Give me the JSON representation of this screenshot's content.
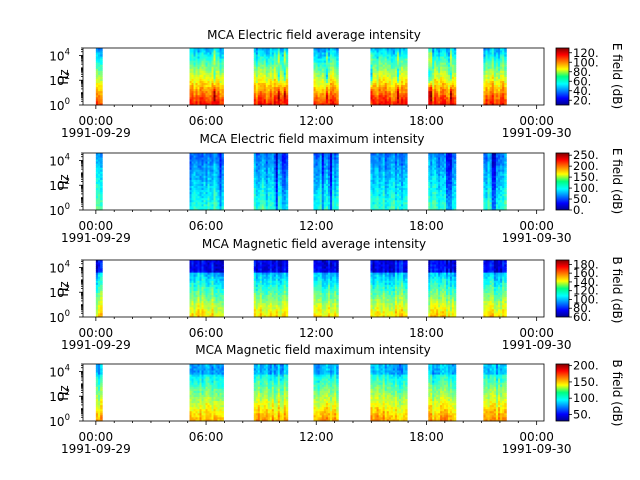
{
  "chart_data": [
    {
      "type": "heatmap",
      "title": "MCA  Electric field average intensity",
      "ylabel": "Hz",
      "y_scale": "log",
      "ylim": [
        1,
        40000
      ],
      "y_tick_labels": [
        {
          "base": "10",
          "exp": "0"
        },
        {
          "base": "10",
          "exp": "2"
        },
        {
          "base": "10",
          "exp": "4"
        }
      ],
      "x_tick_labels": [
        "00:00",
        "06:00",
        "12:00",
        "18:00",
        "00:00"
      ],
      "x_date_labels": [
        "1991-09-29",
        "1991-09-30"
      ],
      "x_range_hours": [
        -0.7,
        24.4
      ],
      "colorbar": {
        "label": "E field (dB)",
        "min": 10,
        "max": 130,
        "ticks": [
          "20.",
          "40.",
          "60.",
          "80.",
          "100.",
          "120."
        ],
        "tick_values": [
          20,
          40,
          60,
          80,
          100,
          120
        ]
      },
      "data_intervals_hours": [
        [
          0,
          0.35
        ],
        [
          5.1,
          6.95
        ],
        [
          8.6,
          10.45
        ],
        [
          11.85,
          13.2
        ],
        [
          14.95,
          16.95
        ],
        [
          18.1,
          19.6
        ],
        [
          21.1,
          22.35
        ]
      ]
    },
    {
      "type": "heatmap",
      "title": "MCA  Electric field maximum intensity",
      "ylabel": "Hz",
      "y_scale": "log",
      "ylim": [
        1,
        40000
      ],
      "y_tick_labels": [
        {
          "base": "10",
          "exp": "0"
        },
        {
          "base": "10",
          "exp": "2"
        },
        {
          "base": "10",
          "exp": "4"
        }
      ],
      "x_tick_labels": [
        "00:00",
        "06:00",
        "12:00",
        "18:00",
        "00:00"
      ],
      "x_date_labels": [
        "1991-09-29",
        "1991-09-30"
      ],
      "x_range_hours": [
        -0.7,
        24.4
      ],
      "colorbar": {
        "label": "E field (dB)",
        "min": 0,
        "max": 260,
        "ticks": [
          "0.",
          "50.",
          "100.",
          "150.",
          "200.",
          "250."
        ],
        "tick_values": [
          0,
          50,
          100,
          150,
          200,
          250
        ]
      },
      "data_intervals_hours": [
        [
          0,
          0.35
        ],
        [
          5.1,
          6.95
        ],
        [
          8.6,
          10.45
        ],
        [
          11.85,
          13.2
        ],
        [
          14.95,
          16.95
        ],
        [
          18.1,
          19.6
        ],
        [
          21.1,
          22.35
        ]
      ]
    },
    {
      "type": "heatmap",
      "title": "MCA  Magnetic field average intensity",
      "ylabel": "Hz",
      "y_scale": "log",
      "ylim": [
        1,
        40000
      ],
      "y_tick_labels": [
        {
          "base": "10",
          "exp": "0"
        },
        {
          "base": "10",
          "exp": "2"
        },
        {
          "base": "10",
          "exp": "4"
        }
      ],
      "x_tick_labels": [
        "00:00",
        "06:00",
        "12:00",
        "18:00",
        "00:00"
      ],
      "x_date_labels": [
        "1991-09-29",
        "1991-09-30"
      ],
      "x_range_hours": [
        -0.7,
        24.4
      ],
      "colorbar": {
        "label": "B field (dB)",
        "min": 60,
        "max": 190,
        "ticks": [
          "60.",
          "80.",
          "100.",
          "120.",
          "140.",
          "160.",
          "180."
        ],
        "tick_values": [
          60,
          80,
          100,
          120,
          140,
          160,
          180
        ]
      },
      "data_intervals_hours": [
        [
          0,
          0.35
        ],
        [
          5.1,
          6.95
        ],
        [
          8.6,
          10.45
        ],
        [
          11.85,
          13.2
        ],
        [
          14.95,
          16.95
        ],
        [
          18.1,
          19.6
        ],
        [
          21.1,
          22.35
        ]
      ]
    },
    {
      "type": "heatmap",
      "title": "MCA  Magnetic field maximum intensity",
      "ylabel": "Hz",
      "y_scale": "log",
      "ylim": [
        1,
        40000
      ],
      "y_tick_labels": [
        {
          "base": "10",
          "exp": "0"
        },
        {
          "base": "10",
          "exp": "2"
        },
        {
          "base": "10",
          "exp": "4"
        }
      ],
      "x_tick_labels": [
        "00:00",
        "06:00",
        "12:00",
        "18:00",
        "00:00"
      ],
      "x_date_labels": [
        "1991-09-29",
        "1991-09-30"
      ],
      "x_range_hours": [
        -0.7,
        24.4
      ],
      "colorbar": {
        "label": "B field (dB)",
        "min": 30,
        "max": 205,
        "ticks": [
          "50.",
          "100.",
          "150.",
          "200."
        ],
        "tick_values": [
          50,
          100,
          150,
          200
        ]
      },
      "data_intervals_hours": [
        [
          0,
          0.35
        ],
        [
          5.1,
          6.95
        ],
        [
          8.6,
          10.45
        ],
        [
          11.85,
          13.2
        ],
        [
          14.95,
          16.95
        ],
        [
          18.1,
          19.6
        ],
        [
          21.1,
          22.35
        ]
      ]
    }
  ]
}
